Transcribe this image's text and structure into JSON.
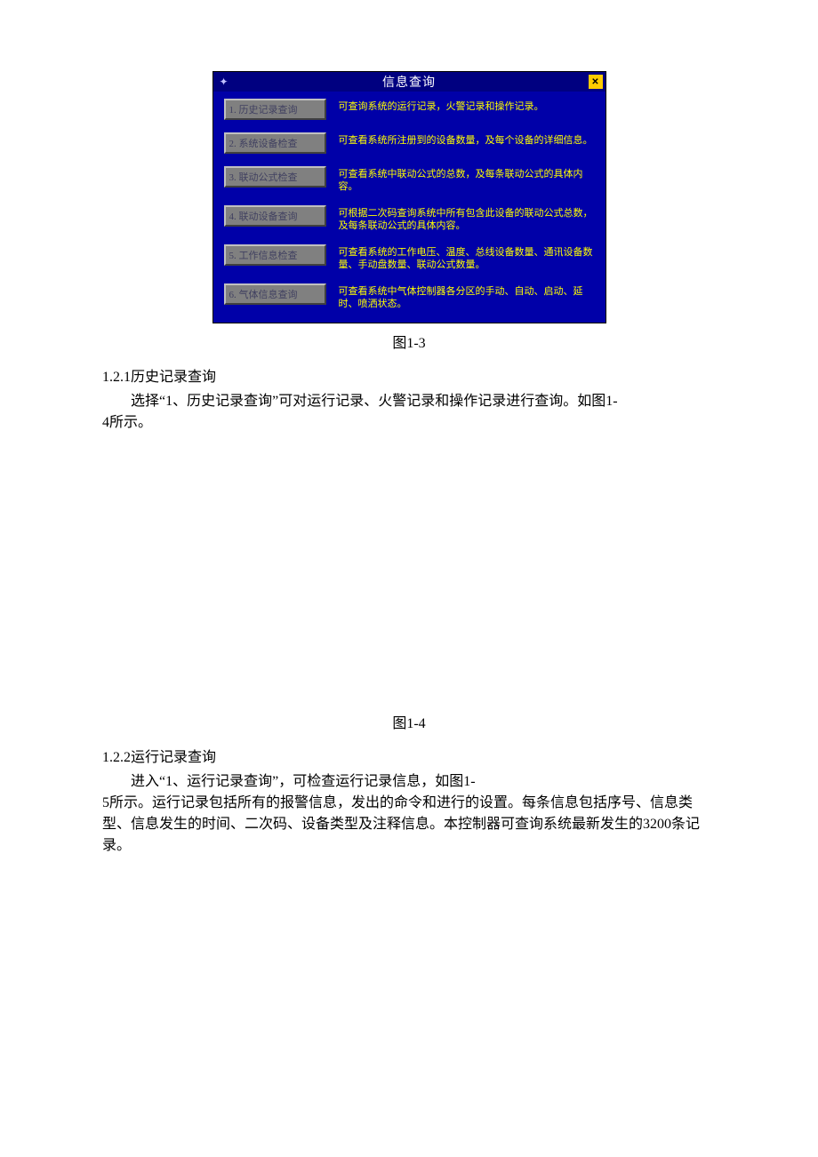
{
  "screenshot": {
    "title": "信息查询",
    "bg_color": "#0000a8",
    "titlebar_color": "#000080",
    "title_color": "#ffffff",
    "close_bg": "#ffcc00",
    "btn_bg": "#808080",
    "btn_text_color": "#404060",
    "desc_color": "#ffff00",
    "items": [
      {
        "label": "1. 历史记录查询",
        "desc": "可查询系统的运行记录，火警记录和操作记录。"
      },
      {
        "label": "2. 系统设备检查",
        "desc": "可查看系统所注册到的设备数量，及每个设备的详细信息。"
      },
      {
        "label": "3. 联动公式检查",
        "desc": "可查看系统中联动公式的总数，及每条联动公式的具体内容。"
      },
      {
        "label": "4. 联动设备查询",
        "desc": "可根据二次码查询系统中所有包含此设备的联动公式总数，及每条联动公式的具体内容。"
      },
      {
        "label": "5. 工作信息检查",
        "desc": "可查看系统的工作电压、温度、总线设备数量、通讯设备数量、手动盘数量、联动公式数量。"
      },
      {
        "label": "6. 气体信息查询",
        "desc": "可查看系统中气体控制器各分区的手动、自动、启动、延时、喷洒状态。"
      }
    ]
  },
  "captions": {
    "fig1_3": "图1-3",
    "fig1_4": "图1-4"
  },
  "sections": {
    "s121_heading": "1.2.1历史记录查询",
    "s121_para_line1": "选择“1、历史记录查询”可对运行记录、火警记录和操作记录进行查询。如图1-",
    "s121_para_line2": "4所示。",
    "s122_heading": "1.2.2运行记录查询",
    "s122_para_line1": "进入“1、运行记录查询”，可检查运行记录信息，如图1-",
    "s122_para_line2": "5所示。运行记录包括所有的报警信息，发出的命令和进行的设置。每条信息包括序号、信息类型、信息发生的时间、二次码、设备类型及注释信息。本控制器可查询系统最新发生的3200条记录。"
  }
}
